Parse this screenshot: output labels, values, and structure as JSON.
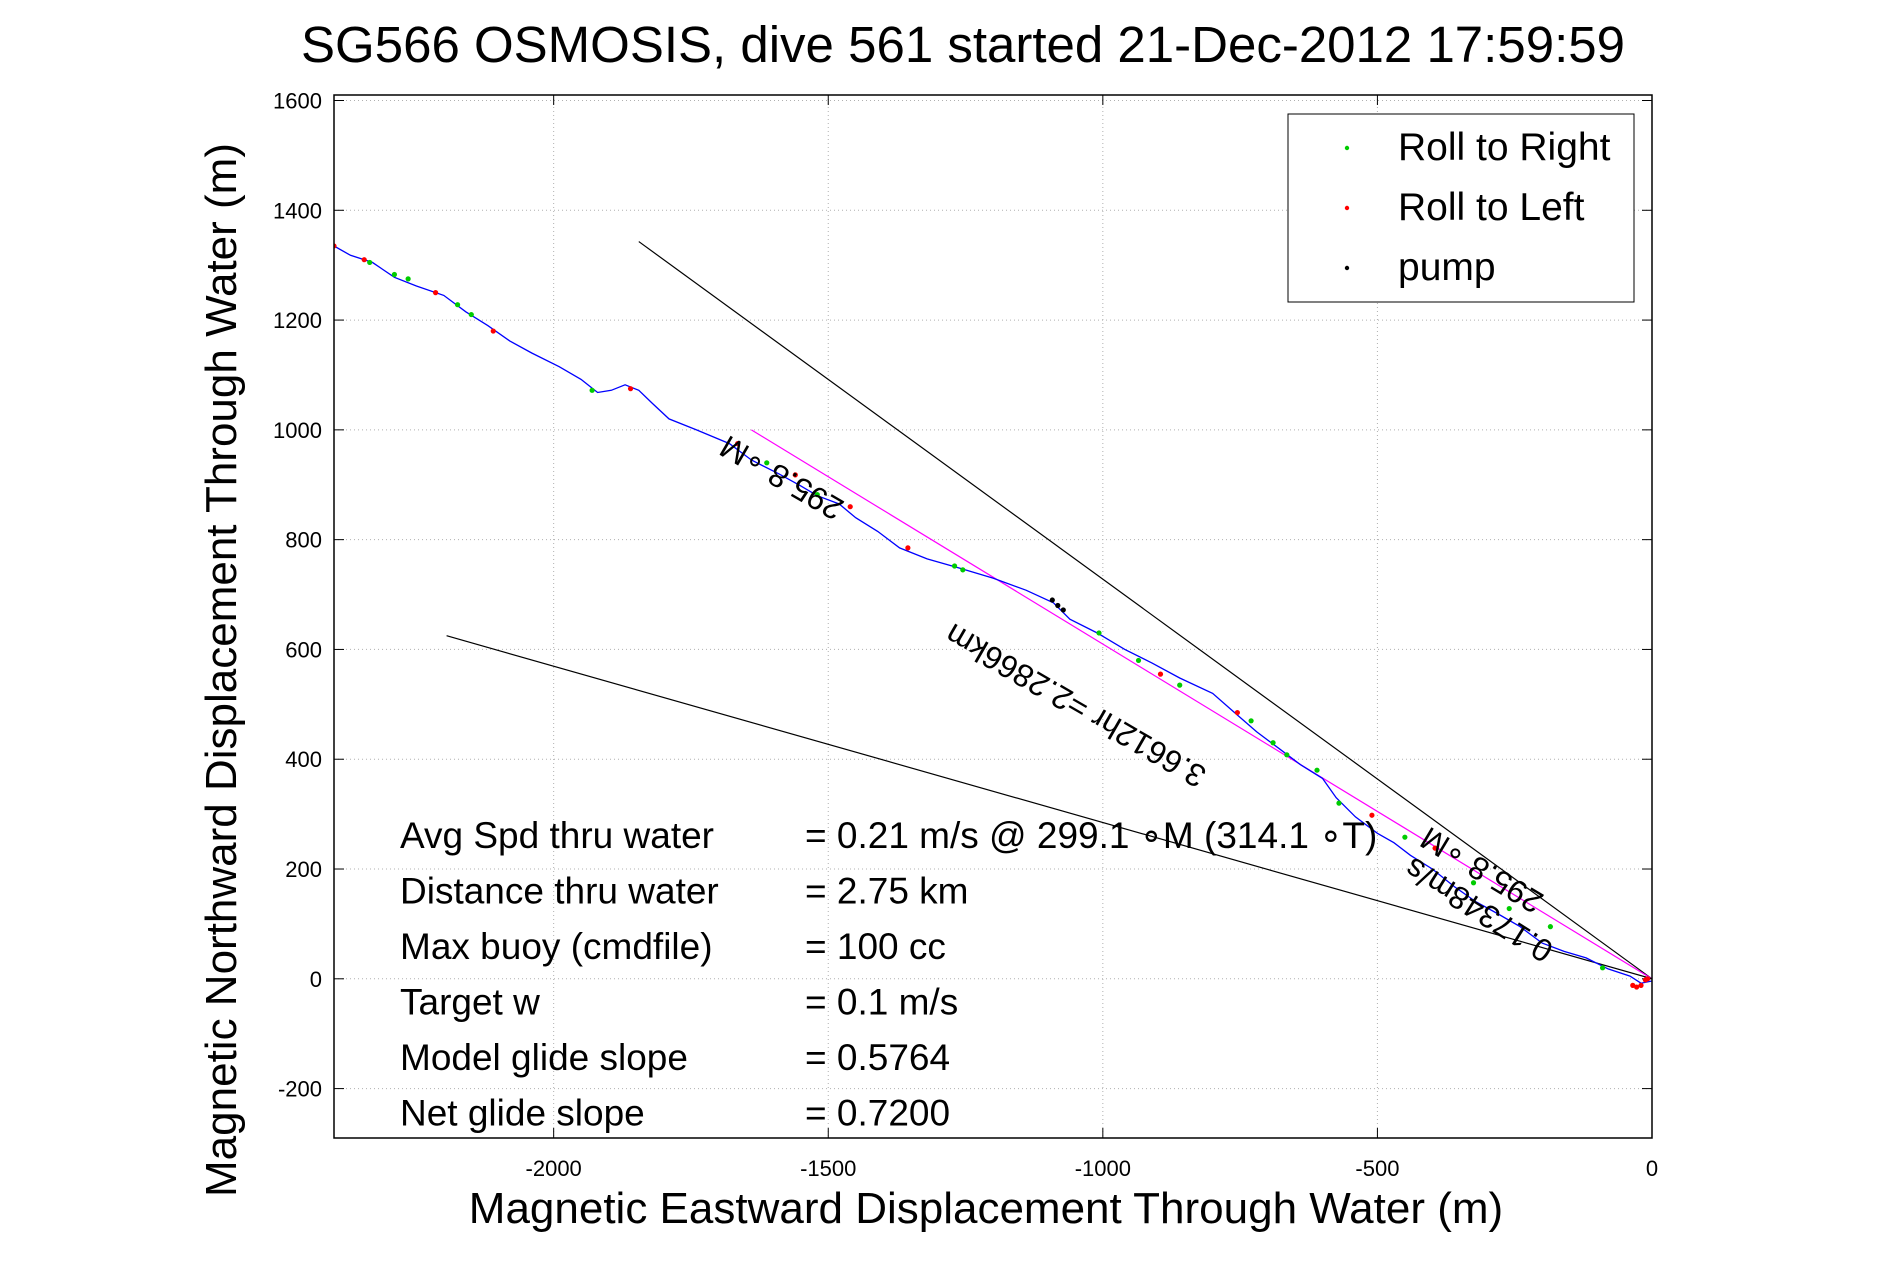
{
  "chart_data": {
    "type": "line",
    "title": "SG566 OSMOSIS, dive 561 started 21-Dec-2012 17:59:59",
    "xlabel": "Magnetic Eastward Displacement Through Water (m)",
    "ylabel": "Magnetic Northward Displacement Through Water (m)",
    "xlim": [
      -2400,
      0
    ],
    "ylim": [
      -290,
      1610
    ],
    "xticks": [
      -2000,
      -1500,
      -1000,
      -500,
      0
    ],
    "yticks": [
      -200,
      0,
      200,
      400,
      600,
      800,
      1000,
      1200,
      1400,
      1600
    ],
    "grid": true,
    "legend_position": "top-right",
    "legend": [
      {
        "label": "Roll to Right",
        "color": "#00cc00"
      },
      {
        "label": "Roll to Left",
        "color": "#ff0000"
      },
      {
        "label": "pump",
        "color": "#000000"
      }
    ],
    "track_color": "#0000ff",
    "series": [
      {
        "name": "track",
        "points": [
          [
            -2400,
            1335
          ],
          [
            -2370,
            1318
          ],
          [
            -2330,
            1305
          ],
          [
            -2290,
            1278
          ],
          [
            -2250,
            1262
          ],
          [
            -2200,
            1245
          ],
          [
            -2160,
            1215
          ],
          [
            -2120,
            1190
          ],
          [
            -2080,
            1162
          ],
          [
            -2040,
            1140
          ],
          [
            -1990,
            1115
          ],
          [
            -1950,
            1092
          ],
          [
            -1920,
            1068
          ],
          [
            -1895,
            1072
          ],
          [
            -1870,
            1082
          ],
          [
            -1845,
            1072
          ],
          [
            -1820,
            1048
          ],
          [
            -1790,
            1020
          ],
          [
            -1740,
            1000
          ],
          [
            -1680,
            975
          ],
          [
            -1640,
            945
          ],
          [
            -1590,
            920
          ],
          [
            -1550,
            898
          ],
          [
            -1520,
            880
          ],
          [
            -1480,
            865
          ],
          [
            -1450,
            840
          ],
          [
            -1410,
            815
          ],
          [
            -1370,
            785
          ],
          [
            -1320,
            765
          ],
          [
            -1260,
            748
          ],
          [
            -1200,
            730
          ],
          [
            -1140,
            708
          ],
          [
            -1090,
            685
          ],
          [
            -1060,
            655
          ],
          [
            -1010,
            630
          ],
          [
            -960,
            600
          ],
          [
            -910,
            575
          ],
          [
            -860,
            548
          ],
          [
            -800,
            520
          ],
          [
            -760,
            485
          ],
          [
            -720,
            450
          ],
          [
            -680,
            420
          ],
          [
            -640,
            390
          ],
          [
            -600,
            365
          ],
          [
            -575,
            330
          ],
          [
            -540,
            295
          ],
          [
            -500,
            265
          ],
          [
            -470,
            248
          ],
          [
            -440,
            225
          ],
          [
            -400,
            200
          ],
          [
            -360,
            168
          ],
          [
            -320,
            140
          ],
          [
            -280,
            118
          ],
          [
            -240,
            95
          ],
          [
            -200,
            65
          ],
          [
            -160,
            50
          ],
          [
            -120,
            38
          ],
          [
            -80,
            18
          ],
          [
            -40,
            5
          ],
          [
            -20,
            -8
          ],
          [
            0,
            -4
          ]
        ]
      },
      {
        "name": "Roll to Right",
        "points": [
          [
            -2335,
            1305
          ],
          [
            -2290,
            1283
          ],
          [
            -2265,
            1275
          ],
          [
            -2175,
            1228
          ],
          [
            -2150,
            1210
          ],
          [
            -1930,
            1072
          ],
          [
            -1612,
            940
          ],
          [
            -1520,
            882
          ],
          [
            -1270,
            752
          ],
          [
            -1255,
            745
          ],
          [
            -1007,
            630
          ],
          [
            -935,
            580
          ],
          [
            -860,
            535
          ],
          [
            -730,
            470
          ],
          [
            -690,
            430
          ],
          [
            -665,
            408
          ],
          [
            -610,
            380
          ],
          [
            -570,
            320
          ],
          [
            -450,
            258
          ],
          [
            -325,
            175
          ],
          [
            -260,
            128
          ],
          [
            -185,
            95
          ],
          [
            -90,
            20
          ]
        ]
      },
      {
        "name": "Roll to Left",
        "points": [
          [
            -2400,
            1335
          ],
          [
            -2345,
            1310
          ],
          [
            -2215,
            1250
          ],
          [
            -2110,
            1180
          ],
          [
            -1860,
            1075
          ],
          [
            -1665,
            975
          ],
          [
            -1560,
            918
          ],
          [
            -1460,
            860
          ],
          [
            -1355,
            785
          ],
          [
            -895,
            555
          ],
          [
            -755,
            485
          ],
          [
            -510,
            298
          ],
          [
            -395,
            238
          ],
          [
            -12,
            -2
          ],
          [
            -20,
            -12
          ],
          [
            -28,
            -15
          ],
          [
            -8,
            0
          ],
          [
            -35,
            -12
          ]
        ]
      },
      {
        "name": "pump",
        "points": [
          [
            -1092,
            690
          ],
          [
            -1082,
            680
          ],
          [
            -1072,
            672
          ]
        ]
      }
    ],
    "reference_lines": [
      {
        "from": [
          -1845,
          1343
        ],
        "to": [
          0,
          0
        ],
        "color": "#000000"
      },
      {
        "from": [
          -1640,
          1000
        ],
        "to": [
          0,
          0
        ],
        "color": "#ff00ff"
      },
      {
        "from": [
          -2195,
          625
        ],
        "to": [
          0,
          0
        ],
        "color": "#000000"
      }
    ],
    "annotations": [
      {
        "text": "295.8 ∘M",
        "at": [
          -1575,
          930
        ],
        "angle": 30,
        "upside_down": true
      },
      {
        "text": "3.6612hr =2.2866km",
        "at": [
          -1040,
          515
        ],
        "angle": 30,
        "upside_down": true
      },
      {
        "text": "295.8 ∘M",
        "at": [
          -300,
          215
        ],
        "angle": 31,
        "upside_down": true
      },
      {
        "text": "0.17348m/s",
        "at": [
          -305,
          142
        ],
        "angle": 32,
        "upside_down": true
      }
    ],
    "stats": [
      {
        "label": "Avg Spd thru water",
        "value": "=  0.21 m/s @ 299.1 ∘M (314.1 ∘T)"
      },
      {
        "label": "Distance thru water",
        "value": "=  2.75 km"
      },
      {
        "label": "Max buoy (cmdfile)",
        "value": "= 100 cc"
      },
      {
        "label": "Target w",
        "value": "= 0.1 m/s"
      },
      {
        "label": "Model glide slope",
        "value": "= 0.5764"
      },
      {
        "label": "Net glide slope",
        "value": "= 0.7200"
      }
    ]
  }
}
